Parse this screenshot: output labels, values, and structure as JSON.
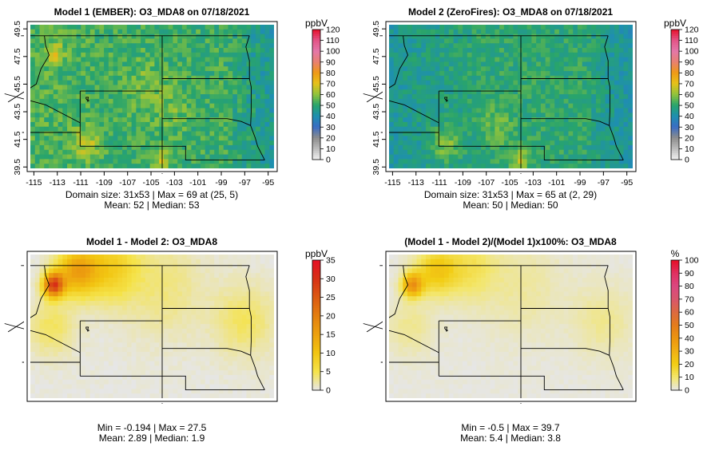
{
  "chart_data": [
    {
      "type": "heatmap",
      "title": "Model 1 (EMBER): O3_MDA8 on 07/18/2021",
      "x_ticks": [
        "-115",
        "-113",
        "-111",
        "-109",
        "-107",
        "-105",
        "-103",
        "-101",
        "-99",
        "-97",
        "-95"
      ],
      "y_ticks": [
        "39.5",
        "41.5",
        "43.5",
        "45.5",
        "47.5",
        "49.5"
      ],
      "xlim": [
        -115.3,
        -94.5
      ],
      "ylim": [
        39.4,
        49.8
      ],
      "legend_title": "ppbV",
      "legend_ticks": [
        "0",
        "10",
        "20",
        "30",
        "40",
        "50",
        "60",
        "70",
        "80",
        "90",
        "100",
        "110",
        "120"
      ],
      "legend_range": [
        0,
        120
      ],
      "scale": "ozone",
      "stats": [
        "Domain size: 31x53 | Max = 69 at (25, 5)",
        "Mean: 52 |  Median: 53"
      ],
      "field": {
        "base": 52,
        "variation": 6,
        "west_gradient": 2,
        "east_low": 10,
        "hotspots": [
          [
            -113.2,
            47.8,
            16,
            0.5
          ],
          [
            -110.5,
            41.2,
            12,
            0.8
          ],
          [
            -104.2,
            40.0,
            12,
            0.6
          ],
          [
            -105.5,
            45.5,
            6,
            1.2
          ],
          [
            -103.5,
            43.5,
            6,
            1.0
          ]
        ]
      }
    },
    {
      "type": "heatmap",
      "title": "Model 2 (ZeroFires): O3_MDA8 on 07/18/2021",
      "x_ticks": [
        "-115",
        "-113",
        "-111",
        "-109",
        "-107",
        "-105",
        "-103",
        "-101",
        "-99",
        "-97",
        "-95"
      ],
      "y_ticks": [
        "39.5",
        "41.5",
        "43.5",
        "45.5",
        "47.5",
        "49.5"
      ],
      "xlim": [
        -115.3,
        -94.5
      ],
      "ylim": [
        39.4,
        49.8
      ],
      "legend_title": "ppbV",
      "legend_ticks": [
        "0",
        "10",
        "20",
        "30",
        "40",
        "50",
        "60",
        "70",
        "80",
        "90",
        "100",
        "110",
        "120"
      ],
      "legend_range": [
        0,
        120
      ],
      "scale": "ozone",
      "stats": [
        "Domain size: 31x53 | Max = 65 at (2, 29)",
        "Mean: 50 |  Median: 50"
      ],
      "field": {
        "base": 50,
        "variation": 5,
        "west_gradient": -6,
        "east_low": 10,
        "hotspots": [
          [
            -110.5,
            41.2,
            12,
            0.8
          ],
          [
            -104.2,
            40.0,
            13,
            0.6
          ],
          [
            -106.0,
            42.5,
            6,
            1.0
          ]
        ]
      }
    },
    {
      "type": "heatmap",
      "title": "Model 1 - Model 2: O3_MDA8",
      "x_ticks": [],
      "y_ticks": [],
      "xlim": [
        -115.3,
        -94.5
      ],
      "ylim": [
        39.4,
        49.8
      ],
      "legend_title": "ppbV",
      "legend_ticks": [
        "0",
        "5",
        "10",
        "15",
        "20",
        "25",
        "30",
        "35"
      ],
      "legend_range": [
        0,
        35
      ],
      "scale": "diff",
      "stats": [
        "Min = -0.194 | Max = 27.5",
        "Mean: 2.89 |  Median: 1.9"
      ],
      "field": {
        "base": 0.3,
        "variation": 0.4,
        "west_gradient": 0,
        "east_low": 0,
        "hotspots": [
          [
            -113.3,
            47.6,
            27,
            0.6
          ],
          [
            -111.3,
            48.6,
            14,
            1.2
          ],
          [
            -108.5,
            48.8,
            8,
            1.6
          ],
          [
            -97.0,
            45.0,
            4,
            1.8
          ],
          [
            -113.5,
            44.5,
            4,
            1.4
          ],
          [
            -104.0,
            47.5,
            3,
            2.5
          ]
        ]
      }
    },
    {
      "type": "heatmap",
      "title": "(Model 1 - Model 2)/(Model 1)x100%: O3_MDA8",
      "x_ticks": [],
      "y_ticks": [],
      "xlim": [
        -115.3,
        -94.5
      ],
      "ylim": [
        39.4,
        49.8
      ],
      "legend_title": "%",
      "legend_ticks": [
        "0",
        "10",
        "20",
        "30",
        "40",
        "50",
        "60",
        "70",
        "80",
        "90",
        "100"
      ],
      "legend_range": [
        0,
        100
      ],
      "scale": "pct",
      "stats": [
        "Min = -0.5 | Max = 39.7",
        "Mean: 5.4 |  Median: 3.8"
      ],
      "field": {
        "base": 0.8,
        "variation": 0.8,
        "west_gradient": 0,
        "east_low": 0,
        "hotspots": [
          [
            -113.3,
            47.6,
            38,
            0.6
          ],
          [
            -111.3,
            48.6,
            20,
            1.2
          ],
          [
            -108.5,
            48.8,
            11,
            1.6
          ],
          [
            -97.0,
            45.0,
            6,
            1.8
          ],
          [
            -113.5,
            44.5,
            6,
            1.4
          ],
          [
            -104.0,
            47.5,
            5,
            2.5
          ]
        ]
      }
    }
  ],
  "colors": {
    "ozone": [
      "#f0f0f0",
      "#bdbdbd",
      "#8c8c8c",
      "#3a6dc4",
      "#1e8fb0",
      "#28a46c",
      "#8fc33c",
      "#e6c21a",
      "#ef9a15",
      "#e98070",
      "#e377a9",
      "#e35487",
      "#e60f2a"
    ],
    "diff": [
      "#e6e6e6",
      "#f5e34a",
      "#f2c511",
      "#eda10f",
      "#e47f0f",
      "#dc5a13",
      "#d73016",
      "#e50f25"
    ],
    "pct": [
      "#e6e6e6",
      "#f3e66a",
      "#f2cd14",
      "#f0b014",
      "#ec9510",
      "#e47c1c",
      "#dc6a40",
      "#d9566c",
      "#da4780",
      "#e03060",
      "#e50f25"
    ]
  }
}
